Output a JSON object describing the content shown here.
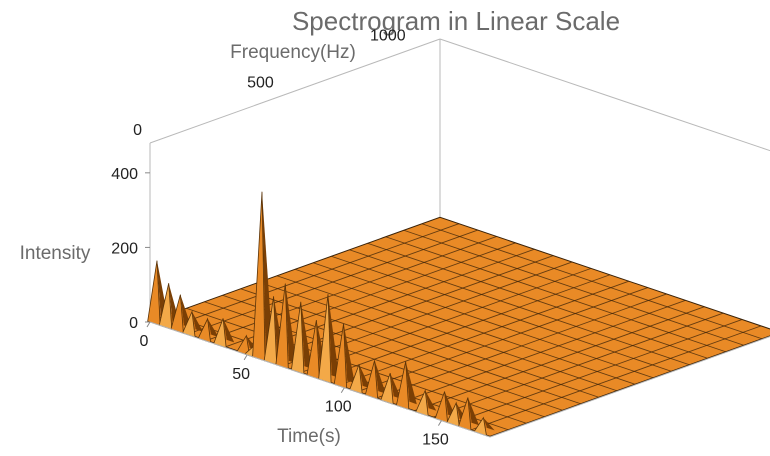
{
  "chart_data": {
    "type": "surface3d",
    "title": "Spectrogram in Linear Scale",
    "xlabel": "Time(s)",
    "ylabel": "Frequency(Hz)",
    "zlabel": "Intensity",
    "xlim": [
      0,
      175
    ],
    "ylim": [
      0,
      1100
    ],
    "zlim": [
      0,
      480
    ],
    "xticks": [
      "0",
      "50",
      "100",
      "150"
    ],
    "yticks": [
      "0",
      "500",
      "1000"
    ],
    "zticks": [
      "0",
      "200",
      "400"
    ],
    "grid": true,
    "surface_color": "#e98a26",
    "grid_color": "#3a2208",
    "box_color": "#b9b9b9",
    "peaks_at_low_frequency": {
      "time_s": [
        2,
        8,
        14,
        20,
        28,
        36,
        48,
        52,
        56,
        62,
        68,
        76,
        84,
        90,
        98,
        106,
        114,
        122,
        130,
        140,
        150,
        156,
        162,
        170
      ],
      "intensity": [
        165,
        115,
        95,
        60,
        55,
        70,
        45,
        25,
        445,
        175,
        220,
        185,
        150,
        230,
        165,
        70,
        95,
        75,
        120,
        60,
        75,
        55,
        80,
        40
      ]
    }
  }
}
